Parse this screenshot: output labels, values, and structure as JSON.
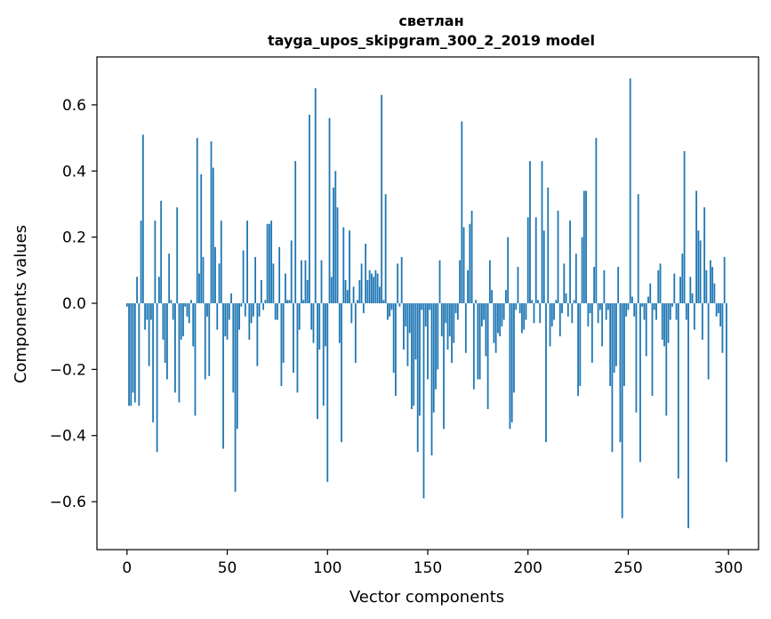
{
  "chart_data": {
    "type": "bar",
    "title": "светлан",
    "subtitle": "tayga_upos_skipgram_300_2_2019 model",
    "xlabel": "Vector components",
    "ylabel": "Components values",
    "xlim": [
      -15,
      315
    ],
    "ylim": [
      -0.745,
      0.745
    ],
    "xticks": [
      0,
      50,
      100,
      150,
      200,
      250,
      300
    ],
    "xtick_labels": [
      "0",
      "50",
      "100",
      "150",
      "200",
      "250",
      "300"
    ],
    "yticks": [
      -0.6,
      -0.4,
      -0.2,
      0.0,
      0.2,
      0.4,
      0.6
    ],
    "ytick_labels": [
      "−0.6",
      "−0.4",
      "−0.2",
      "0.0",
      "0.2",
      "0.4",
      "0.6"
    ],
    "grid": false,
    "bar_color": "#1f77b4",
    "x": [
      0,
      1,
      2,
      3,
      4,
      5,
      6,
      7,
      8,
      9,
      10,
      11,
      12,
      13,
      14,
      15,
      16,
      17,
      18,
      19,
      20,
      21,
      22,
      23,
      24,
      25,
      26,
      27,
      28,
      29,
      30,
      31,
      32,
      33,
      34,
      35,
      36,
      37,
      38,
      39,
      40,
      41,
      42,
      43,
      44,
      45,
      46,
      47,
      48,
      49,
      50,
      51,
      52,
      53,
      54,
      55,
      56,
      57,
      58,
      59,
      60,
      61,
      62,
      63,
      64,
      65,
      66,
      67,
      68,
      69,
      70,
      71,
      72,
      73,
      74,
      75,
      76,
      77,
      78,
      79,
      80,
      81,
      82,
      83,
      84,
      85,
      86,
      87,
      88,
      89,
      90,
      91,
      92,
      93,
      94,
      95,
      96,
      97,
      98,
      99,
      100,
      101,
      102,
      103,
      104,
      105,
      106,
      107,
      108,
      109,
      110,
      111,
      112,
      113,
      114,
      115,
      116,
      117,
      118,
      119,
      120,
      121,
      122,
      123,
      124,
      125,
      126,
      127,
      128,
      129,
      130,
      131,
      132,
      133,
      134,
      135,
      136,
      137,
      138,
      139,
      140,
      141,
      142,
      143,
      144,
      145,
      146,
      147,
      148,
      149,
      150,
      151,
      152,
      153,
      154,
      155,
      156,
      157,
      158,
      159,
      160,
      161,
      162,
      163,
      164,
      165,
      166,
      167,
      168,
      169,
      170,
      171,
      172,
      173,
      174,
      175,
      176,
      177,
      178,
      179,
      180,
      181,
      182,
      183,
      184,
      185,
      186,
      187,
      188,
      189,
      190,
      191,
      192,
      193,
      194,
      195,
      196,
      197,
      198,
      199,
      200,
      201,
      202,
      203,
      204,
      205,
      206,
      207,
      208,
      209,
      210,
      211,
      212,
      213,
      214,
      215,
      216,
      217,
      218,
      219,
      220,
      221,
      222,
      223,
      224,
      225,
      226,
      227,
      228,
      229,
      230,
      231,
      232,
      233,
      234,
      235,
      236,
      237,
      238,
      239,
      240,
      241,
      242,
      243,
      244,
      245,
      246,
      247,
      248,
      249,
      250,
      251,
      252,
      253,
      254,
      255,
      256,
      257,
      258,
      259,
      260,
      261,
      262,
      263,
      264,
      265,
      266,
      267,
      268,
      269,
      270,
      271,
      272,
      273,
      274,
      275,
      276,
      277,
      278,
      279,
      280,
      281,
      282,
      283,
      284,
      285,
      286,
      287,
      288,
      289,
      290,
      291,
      292,
      293,
      294,
      295,
      296,
      297,
      298,
      299
    ],
    "values": [
      -0.01,
      -0.31,
      -0.31,
      -0.27,
      -0.3,
      0.08,
      -0.31,
      0.25,
      0.51,
      -0.08,
      -0.05,
      -0.19,
      -0.05,
      -0.36,
      0.25,
      -0.45,
      0.08,
      0.31,
      -0.11,
      -0.18,
      -0.23,
      0.15,
      0.01,
      -0.05,
      -0.27,
      0.29,
      -0.3,
      -0.11,
      -0.1,
      -0.01,
      -0.04,
      -0.06,
      0.01,
      -0.13,
      -0.34,
      0.5,
      0.09,
      0.39,
      0.14,
      -0.23,
      -0.04,
      -0.22,
      0.49,
      0.41,
      0.17,
      -0.08,
      0.12,
      0.25,
      -0.44,
      -0.1,
      -0.11,
      -0.05,
      0.03,
      -0.27,
      -0.57,
      -0.38,
      -0.08,
      -0.01,
      0.16,
      -0.04,
      0.25,
      -0.11,
      -0.06,
      -0.04,
      0.14,
      -0.19,
      -0.04,
      0.07,
      -0.02,
      0.01,
      0.24,
      0.24,
      0.25,
      0.12,
      -0.05,
      -0.05,
      0.17,
      -0.25,
      -0.18,
      0.09,
      0.01,
      0.01,
      0.19,
      -0.21,
      0.43,
      -0.27,
      -0.08,
      0.13,
      0.01,
      0.13,
      0.07,
      0.57,
      -0.08,
      -0.12,
      0.65,
      -0.35,
      -0.14,
      0.13,
      -0.31,
      -0.13,
      -0.54,
      0.56,
      0.08,
      0.35,
      0.4,
      0.29,
      -0.12,
      -0.42,
      0.23,
      0.07,
      0.04,
      0.22,
      -0.06,
      0.05,
      -0.18,
      0.01,
      0.07,
      0.12,
      -0.03,
      0.18,
      0.07,
      0.1,
      0.09,
      0.08,
      0.1,
      0.09,
      0.05,
      0.63,
      0.01,
      0.33,
      -0.05,
      -0.04,
      -0.02,
      -0.21,
      -0.28,
      0.12,
      -0.01,
      0.14,
      -0.14,
      -0.07,
      -0.19,
      -0.09,
      -0.32,
      -0.31,
      -0.17,
      -0.45,
      -0.34,
      -0.02,
      -0.59,
      -0.07,
      -0.23,
      -0.02,
      -0.46,
      -0.33,
      -0.26,
      -0.2,
      0.13,
      -0.1,
      -0.38,
      -0.06,
      -0.14,
      -0.1,
      -0.18,
      -0.12,
      -0.03,
      -0.05,
      0.13,
      0.55,
      0.23,
      -0.15,
      0.1,
      0.24,
      0.28,
      -0.26,
      0.01,
      -0.23,
      -0.23,
      -0.07,
      -0.05,
      -0.16,
      -0.32,
      0.13,
      0.04,
      -0.12,
      -0.15,
      -0.09,
      -0.1,
      -0.07,
      -0.05,
      0.04,
      0.2,
      -0.38,
      -0.36,
      -0.27,
      -0.02,
      0.11,
      -0.03,
      -0.09,
      -0.08,
      -0.05,
      0.26,
      0.43,
      0.01,
      -0.06,
      0.26,
      0.01,
      -0.06,
      0.43,
      0.22,
      -0.42,
      0.35,
      -0.13,
      -0.07,
      -0.05,
      0.01,
      0.28,
      -0.1,
      -0.03,
      0.12,
      0.03,
      -0.04,
      0.25,
      -0.06,
      0.01,
      0.15,
      -0.28,
      -0.25,
      0.2,
      0.34,
      0.34,
      -0.07,
      -0.03,
      -0.18,
      0.11,
      0.5,
      -0.06,
      -0.02,
      -0.13,
      0.1,
      -0.05,
      -0.02,
      -0.25,
      -0.45,
      -0.21,
      -0.19,
      0.11,
      -0.42,
      -0.65,
      -0.25,
      -0.04,
      -0.02,
      0.68,
      0.02,
      -0.04,
      -0.33,
      0.33,
      -0.48,
      -0.01,
      -0.05,
      -0.16,
      0.02,
      0.06,
      -0.28,
      -0.02,
      -0.05,
      0.1,
      0.12,
      -0.11,
      -0.13,
      -0.34,
      -0.12,
      -0.05,
      -0.01,
      0.09,
      -0.05,
      -0.53,
      0.08,
      0.15,
      0.46,
      -0.05,
      -0.68,
      0.08,
      0.03,
      -0.08,
      0.34,
      0.22,
      0.19,
      -0.11,
      0.29,
      0.1,
      -0.23,
      0.13,
      0.11,
      0.06,
      -0.04,
      -0.03,
      -0.07,
      -0.15,
      0.14,
      -0.48
    ]
  }
}
